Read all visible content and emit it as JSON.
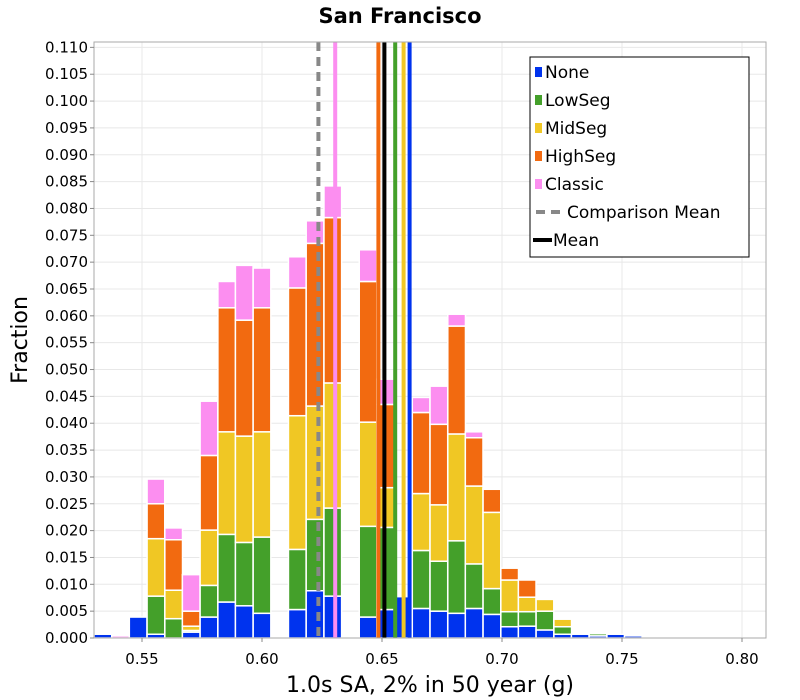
{
  "chart_data": {
    "type": "bar",
    "stacked": true,
    "title": "San Francisco",
    "xlabel": "1.0s SA, 2% in 50 year (g)",
    "ylabel": "Fraction",
    "xlim": [
      0.53,
      0.81
    ],
    "ylim": [
      0,
      0.111
    ],
    "xticks": [
      0.55,
      0.6,
      0.65,
      0.7,
      0.75,
      0.8
    ],
    "xtick_labels": [
      "0.55",
      "0.60",
      "0.65",
      "0.70",
      "0.75",
      "0.80"
    ],
    "yticks": [
      0,
      0.005,
      0.01,
      0.015,
      0.02,
      0.025,
      0.03,
      0.035,
      0.04,
      0.045,
      0.05,
      0.055,
      0.06,
      0.065,
      0.07,
      0.075,
      0.08,
      0.085,
      0.09,
      0.095,
      0.1,
      0.105,
      0.11
    ],
    "ytick_labels": [
      "0.000",
      "0.005",
      "0.010",
      "0.015",
      "0.020",
      "0.025",
      "0.030",
      "0.035",
      "0.040",
      "0.045",
      "0.050",
      "0.055",
      "0.060",
      "0.065",
      "0.070",
      "0.075",
      "0.080",
      "0.085",
      "0.090",
      "0.095",
      "0.100",
      "0.105",
      "0.110"
    ],
    "grid": true,
    "legend_position": "top-right",
    "bin_width": 0.00736,
    "bin_centers": [
      0.5337,
      0.5411,
      0.5484,
      0.5558,
      0.5632,
      0.5705,
      0.5779,
      0.5853,
      0.5926,
      0.6,
      0.6074,
      0.6147,
      0.6221,
      0.6295,
      0.6368,
      0.6442,
      0.6516,
      0.6589,
      0.6663,
      0.6737,
      0.6811,
      0.6884,
      0.6958,
      0.7032,
      0.7105,
      0.7179,
      0.7253,
      0.7326,
      0.74,
      0.7474,
      0.7547,
      0.7621,
      0.7695,
      0.7768,
      0.7842,
      0.7916,
      0.7989,
      0.8063
    ],
    "series": [
      {
        "name": "None",
        "color": "#0033ee",
        "values": [
          0.0007,
          0,
          0.0039,
          0.0007,
          0,
          0.0011,
          0.0039,
          0.0067,
          0.006,
          0.0046,
          0,
          0.0053,
          0.0088,
          0.0078,
          0,
          0.0039,
          0.0053,
          0.0077,
          0.0055,
          0.005,
          0.0046,
          0.0055,
          0.0044,
          0.0021,
          0.0022,
          0.0015,
          0.0007,
          0.0007,
          0.0004,
          0.0007,
          0.0004,
          0,
          0,
          0,
          0,
          0,
          0,
          0
        ]
      },
      {
        "name": "LowSeg",
        "color": "#44a02a",
        "values": [
          0,
          0,
          0,
          0.0071,
          0.0036,
          0.0003,
          0.0059,
          0.0126,
          0.0118,
          0.0142,
          0,
          0.0112,
          0.0133,
          0.0164,
          0,
          0.0169,
          0.0153,
          0,
          0.0108,
          0.0093,
          0.0135,
          0.0083,
          0.0048,
          0.0028,
          0.0027,
          0.0035,
          0.0014,
          0,
          0.0004,
          0,
          0,
          0,
          0,
          0,
          0,
          0,
          0,
          0
        ]
      },
      {
        "name": "MidSeg",
        "color": "#f0c724",
        "values": [
          0,
          0,
          0,
          0.0107,
          0.0053,
          0.0008,
          0.0103,
          0.0191,
          0.0198,
          0.0196,
          0,
          0.0249,
          0.0211,
          0.0233,
          0,
          0.0194,
          0.0074,
          0,
          0.0106,
          0.0105,
          0.0199,
          0.0145,
          0.0142,
          0.0059,
          0.0027,
          0.0022,
          0.0014,
          0,
          0,
          0,
          0,
          0,
          0,
          0,
          0,
          0,
          0,
          0
        ]
      },
      {
        "name": "HighSeg",
        "color": "#f26a10",
        "values": [
          0,
          0,
          0,
          0.0065,
          0.0094,
          0.0028,
          0.0139,
          0.0231,
          0.0216,
          0.0231,
          0,
          0.0238,
          0.0303,
          0.0308,
          0,
          0.0262,
          0.0155,
          0,
          0.0151,
          0.015,
          0.0201,
          0.009,
          0.0043,
          0.0022,
          0.0032,
          0,
          0,
          0,
          0,
          0,
          0,
          0,
          0,
          0,
          0,
          0,
          0,
          0
        ]
      },
      {
        "name": "Classic",
        "color": "#fc8ef0",
        "values": [
          0,
          0.0004,
          0,
          0.0046,
          0.0022,
          0.0068,
          0.0101,
          0.0049,
          0.0102,
          0.0074,
          0,
          0.0058,
          0.0042,
          0.0059,
          0,
          0.0059,
          0.0047,
          0,
          0.0028,
          0.0071,
          0.0022,
          0.0011,
          0.0001,
          0,
          0,
          0.0001,
          0,
          0,
          0,
          0,
          0,
          0,
          0,
          0,
          0,
          0,
          0,
          0
        ]
      }
    ],
    "reference_lines": [
      {
        "name": "Comparison Mean",
        "x": 0.6235,
        "color": "#888888",
        "style": "dashed"
      },
      {
        "name": "Mean",
        "x": 0.651,
        "color": "#000000",
        "style": "solid"
      },
      {
        "name": "Classic",
        "x": 0.6305,
        "color": "#fc8ef0",
        "style": "solid"
      },
      {
        "name": "HighSeg",
        "x": 0.6485,
        "color": "#f26a10",
        "style": "solid"
      },
      {
        "name": "LowSeg",
        "x": 0.6555,
        "color": "#44a02a",
        "style": "solid"
      },
      {
        "name": "MidSeg",
        "x": 0.659,
        "color": "#f0c724",
        "style": "solid"
      },
      {
        "name": "None",
        "x": 0.6615,
        "color": "#0033ee",
        "style": "solid"
      }
    ],
    "legend": [
      {
        "label": "None",
        "color": "#0033ee",
        "kind": "box"
      },
      {
        "label": "LowSeg",
        "color": "#44a02a",
        "kind": "box"
      },
      {
        "label": "MidSeg",
        "color": "#f0c724",
        "kind": "box"
      },
      {
        "label": "HighSeg",
        "color": "#f26a10",
        "kind": "box"
      },
      {
        "label": "Classic",
        "color": "#fc8ef0",
        "kind": "box"
      },
      {
        "label": "Comparison Mean",
        "color": "#888888",
        "kind": "dashed"
      },
      {
        "label": "Mean",
        "color": "#000000",
        "kind": "solid"
      }
    ]
  }
}
